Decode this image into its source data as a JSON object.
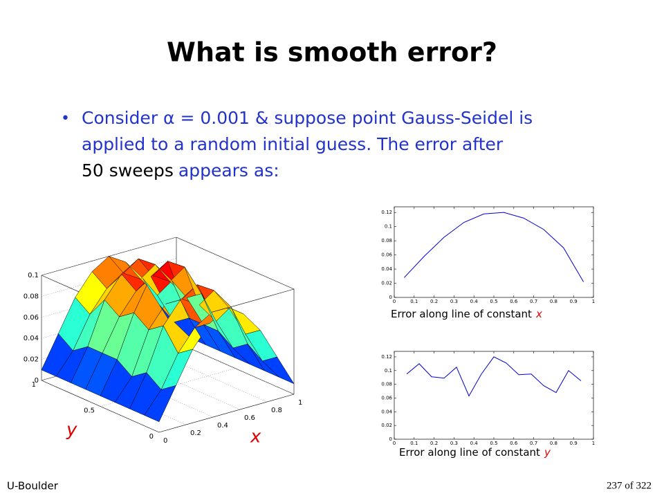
{
  "header": {
    "title": "What is smooth error?"
  },
  "body": {
    "lines": [
      [
        {
          "text": "Consider α = 0.001 & suppose point Gauss-Seidel is",
          "color": "#2233cc"
        }
      ],
      [
        {
          "text": "applied to a random initial guess.  The error after",
          "color": "#2233cc"
        }
      ],
      [
        {
          "text": "50 sweeps",
          "color": "#000000"
        },
        {
          "text": "appears as:",
          "color": "#2233cc"
        }
      ]
    ]
  },
  "footer": {
    "left": "U-Boulder",
    "right": "237 of 322"
  },
  "chart_data": [
    {
      "type": "surface",
      "xlabel": "x",
      "ylabel": "y",
      "x": [
        0,
        0.125,
        0.25,
        0.375,
        0.5,
        0.625,
        0.75,
        0.875,
        1
      ],
      "y": [
        0,
        0.125,
        0.25,
        0.375,
        0.5,
        0.625,
        0.75,
        0.875,
        1
      ],
      "z": [
        [
          0.01,
          0.04,
          0.07,
          0.09,
          0.1,
          0.09,
          0.07,
          0.04,
          0.01
        ],
        [
          0.01,
          0.03,
          0.06,
          0.08,
          0.09,
          0.09,
          0.06,
          0.03,
          0.01
        ],
        [
          0.01,
          0.04,
          0.08,
          0.1,
          0.11,
          0.1,
          0.08,
          0.04,
          0.01
        ],
        [
          0.01,
          0.03,
          0.07,
          0.09,
          0.09,
          0.08,
          0.06,
          0.03,
          0.01
        ],
        [
          0.01,
          0.04,
          0.08,
          0.11,
          0.12,
          0.11,
          0.08,
          0.04,
          0.01
        ],
        [
          0.01,
          0.04,
          0.07,
          0.09,
          0.1,
          0.09,
          0.07,
          0.04,
          0.01
        ],
        [
          0.01,
          0.04,
          0.08,
          0.1,
          0.11,
          0.1,
          0.08,
          0.04,
          0.01
        ],
        [
          0.01,
          0.03,
          0.06,
          0.08,
          0.09,
          0.08,
          0.06,
          0.03,
          0.01
        ],
        [
          0.01,
          0.04,
          0.07,
          0.09,
          0.1,
          0.09,
          0.07,
          0.04,
          0.01
        ]
      ],
      "xlim": [
        0,
        1
      ],
      "ylim": [
        0,
        1
      ],
      "zlim": [
        0,
        0.1
      ],
      "clim": [
        0,
        0.12
      ],
      "xticks": [
        0,
        0.2,
        0.4,
        0.6,
        0.8,
        1
      ],
      "yticks": [
        0,
        0.5,
        1
      ],
      "zticks": [
        0,
        0.02,
        0.04,
        0.06,
        0.08,
        0.1
      ],
      "label_color": "#dd0000"
    },
    {
      "type": "line",
      "caption": "Error along line of constant",
      "caption_var": "x",
      "color": "#0000cc",
      "x": [
        0.05,
        0.15,
        0.25,
        0.35,
        0.45,
        0.55,
        0.65,
        0.75,
        0.85,
        0.95
      ],
      "values": [
        0.028,
        0.058,
        0.085,
        0.106,
        0.118,
        0.12,
        0.112,
        0.096,
        0.07,
        0.022
      ],
      "xlim": [
        0,
        1
      ],
      "ylim": [
        0,
        0.128
      ],
      "xticks": [
        0,
        0.1,
        0.2,
        0.3,
        0.4,
        0.5,
        0.6,
        0.7,
        0.8,
        0.9,
        1
      ],
      "yticks": [
        0,
        0.02,
        0.04,
        0.06,
        0.08,
        0.1,
        0.12
      ]
    },
    {
      "type": "line",
      "caption": "Error along line of constant",
      "caption_var": "y",
      "color": "#0000cc",
      "x": [
        0.0625,
        0.125,
        0.1875,
        0.25,
        0.3125,
        0.375,
        0.4375,
        0.5,
        0.5625,
        0.625,
        0.6875,
        0.75,
        0.8125,
        0.875,
        0.9375
      ],
      "values": [
        0.095,
        0.11,
        0.091,
        0.089,
        0.105,
        0.063,
        0.095,
        0.12,
        0.111,
        0.094,
        0.095,
        0.078,
        0.068,
        0.1,
        0.085
      ],
      "xlim": [
        0,
        1
      ],
      "ylim": [
        0,
        0.128
      ],
      "xticks": [
        0,
        0.1,
        0.2,
        0.3,
        0.4,
        0.5,
        0.6,
        0.7,
        0.8,
        0.9,
        1
      ],
      "yticks": [
        0,
        0.02,
        0.04,
        0.06,
        0.08,
        0.1,
        0.12
      ]
    }
  ]
}
